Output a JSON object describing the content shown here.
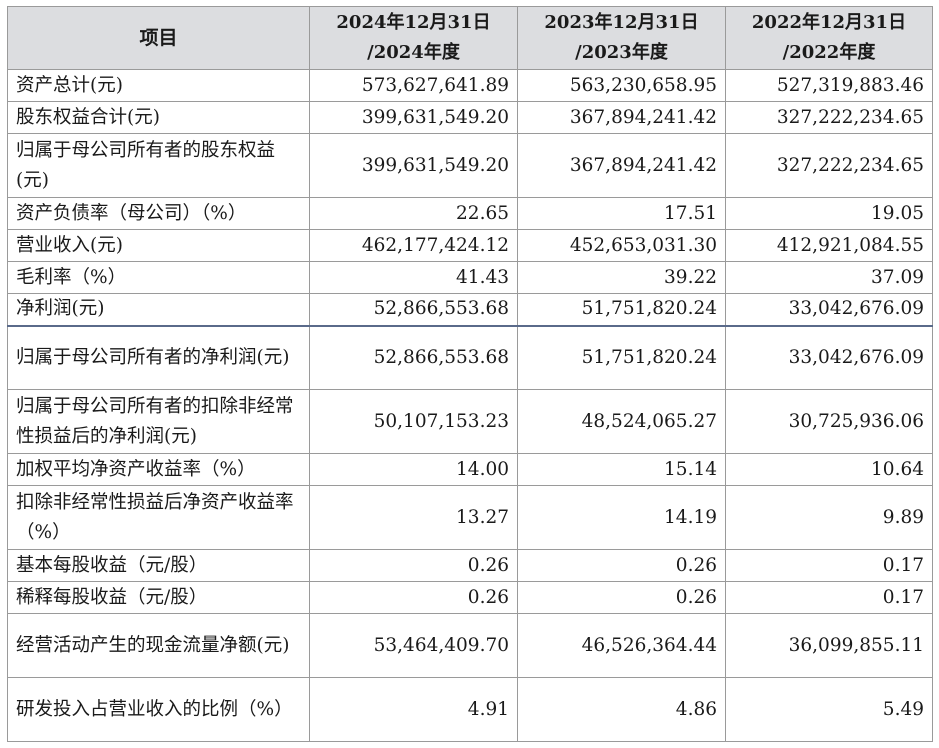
{
  "table": {
    "headers": {
      "item": "项目",
      "col2024_line1": "2024年12月31日",
      "col2024_line2": "/2024年度",
      "col2023_line1": "2023年12月31日",
      "col2023_line2": "/2023年度",
      "col2022_line1": "2022年12月31日",
      "col2022_line2": "/2022年度"
    },
    "rows": [
      {
        "label": "资产总计(元)",
        "v2024": "573,627,641.89",
        "v2023": "563,230,658.95",
        "v2022": "527,319,883.46"
      },
      {
        "label": "股东权益合计(元)",
        "v2024": "399,631,549.20",
        "v2023": "367,894,241.42",
        "v2022": "327,222,234.65"
      },
      {
        "label": "归属于母公司所有者的股东权益(元)",
        "v2024": "399,631,549.20",
        "v2023": "367,894,241.42",
        "v2022": "327,222,234.65"
      },
      {
        "label": "资产负债率（母公司）（%）",
        "v2024": "22.65",
        "v2023": "17.51",
        "v2022": "19.05"
      },
      {
        "label": "营业收入(元)",
        "v2024": "462,177,424.12",
        "v2023": "452,653,031.30",
        "v2022": "412,921,084.55"
      },
      {
        "label": "毛利率（%）",
        "v2024": "41.43",
        "v2023": "39.22",
        "v2022": "37.09"
      },
      {
        "label": "净利润(元)",
        "v2024": "52,866,553.68",
        "v2023": "51,751,820.24",
        "v2022": "33,042,676.09"
      },
      {
        "label": "归属于母公司所有者的净利润(元)",
        "v2024": "52,866,553.68",
        "v2023": "51,751,820.24",
        "v2022": "33,042,676.09"
      },
      {
        "label": "归属于母公司所有者的扣除非经常性损益后的净利润(元)",
        "v2024": "50,107,153.23",
        "v2023": "48,524,065.27",
        "v2022": "30,725,936.06"
      },
      {
        "label": "加权平均净资产收益率（%）",
        "v2024": "14.00",
        "v2023": "15.14",
        "v2022": "10.64"
      },
      {
        "label": "扣除非经常性损益后净资产收益率（%）",
        "v2024": "13.27",
        "v2023": "14.19",
        "v2022": "9.89"
      },
      {
        "label": "基本每股收益（元/股）",
        "v2024": "0.26",
        "v2023": "0.26",
        "v2022": "0.17"
      },
      {
        "label": "稀释每股收益（元/股）",
        "v2024": "0.26",
        "v2023": "0.26",
        "v2022": "0.17"
      },
      {
        "label": "经营活动产生的现金流量净额(元)",
        "v2024": "53,464,409.70",
        "v2023": "46,526,364.44",
        "v2022": "36,099,855.11"
      },
      {
        "label": "研发投入占营业收入的比例（%）",
        "v2024": "4.91",
        "v2023": "4.86",
        "v2022": "5.49"
      }
    ]
  }
}
